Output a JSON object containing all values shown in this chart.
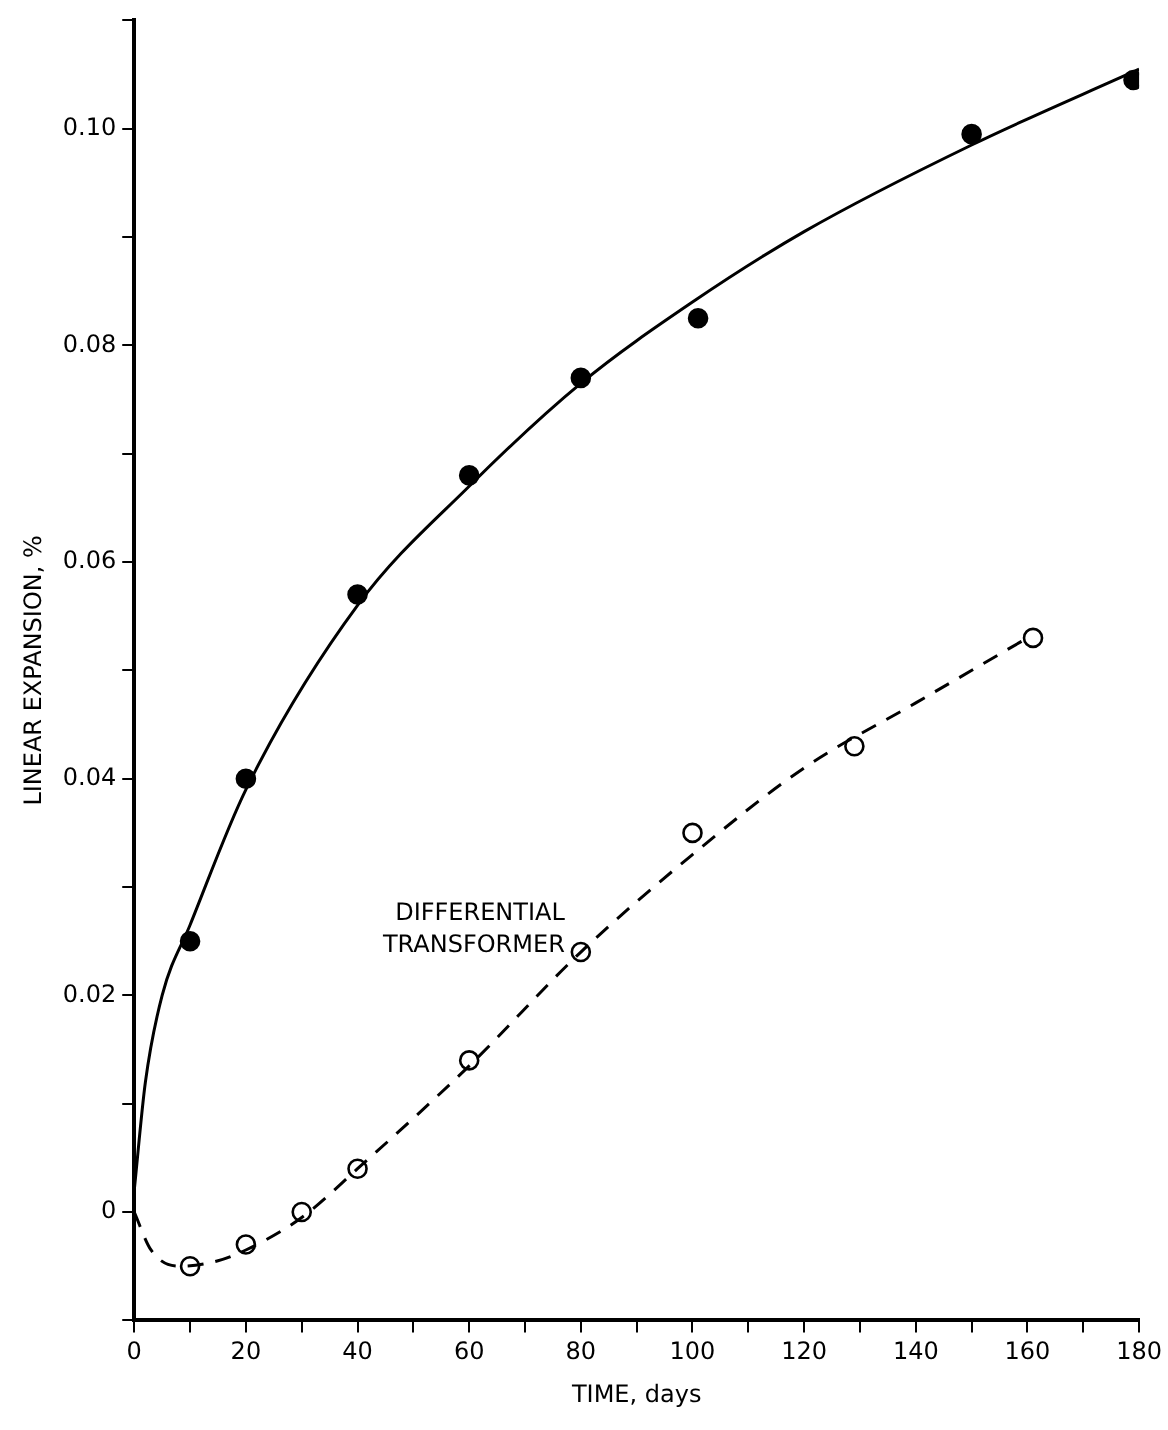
{
  "chart_data": {
    "type": "scatter",
    "xlabel": "TIME, days",
    "ylabel": "LINEAR EXPANSION, %",
    "xlim": [
      0,
      180
    ],
    "ylim": [
      -0.01,
      0.11
    ],
    "xticks": [
      0,
      {
        "value": 10,
        "label": null
      },
      20,
      {
        "value": 30,
        "label": null
      },
      40,
      {
        "value": 50,
        "label": null
      },
      60,
      {
        "value": 70,
        "label": null
      },
      80,
      {
        "value": 90,
        "label": null
      },
      100,
      {
        "value": 110,
        "label": null
      },
      120,
      {
        "value": 130,
        "label": null
      },
      140,
      {
        "value": 150,
        "label": null
      },
      160,
      {
        "value": 170,
        "label": null
      },
      180
    ],
    "yticks": [
      {
        "value": -0.01,
        "label": null
      },
      0,
      {
        "value": 0.01,
        "label": null
      },
      0.02,
      {
        "value": 0.03,
        "label": null
      },
      0.04,
      {
        "value": 0.05,
        "label": null
      },
      0.06,
      {
        "value": 0.07,
        "label": null
      },
      0.08,
      {
        "value": 0.09,
        "label": null
      },
      {
        "value": 0.1,
        "label": "0.10"
      },
      {
        "value": 0.11,
        "label": null
      }
    ],
    "grid": false,
    "legend": false,
    "marker": "circle",
    "series": [
      {
        "type": "line",
        "color": "#000000",
        "line_style": "solid",
        "marker": "none",
        "x": [
          0,
          2,
          5,
          10,
          20,
          40,
          60,
          80,
          100,
          120,
          150,
          180
        ],
        "values": [
          0.002,
          0.012,
          0.02,
          0.0265,
          0.039,
          0.056,
          0.067,
          0.0765,
          0.084,
          0.0905,
          0.0985,
          0.1055
        ]
      },
      {
        "type": "line",
        "color": "#000000",
        "line_style": "dashed",
        "marker": "none",
        "x": [
          0,
          3,
          8,
          15,
          20,
          30,
          40,
          60,
          80,
          100,
          120,
          140,
          160
        ],
        "values": [
          0,
          -0.0035,
          -0.005,
          -0.0045,
          -0.0035,
          -0.0005,
          0.004,
          0.0135,
          0.024,
          0.033,
          0.041,
          0.047,
          0.053
        ]
      },
      {
        "type": "scatter",
        "color": "#000000",
        "x": [
          10,
          20,
          40,
          60,
          80,
          101,
          150,
          179
        ],
        "values": [
          0.025,
          0.04,
          0.057,
          0.068,
          0.077,
          0.0825,
          0.0995,
          0.1045
        ]
      },
      {
        "type": "scatter",
        "name": "DIFFERENTIAL TRANSFORMER",
        "color": "#ffffff",
        "x": [
          10,
          20,
          30,
          40,
          60,
          80,
          100,
          129,
          161
        ],
        "values": [
          -0.005,
          -0.003,
          0,
          0.004,
          0.014,
          0.024,
          0.035,
          0.043,
          0.053
        ]
      }
    ]
  }
}
